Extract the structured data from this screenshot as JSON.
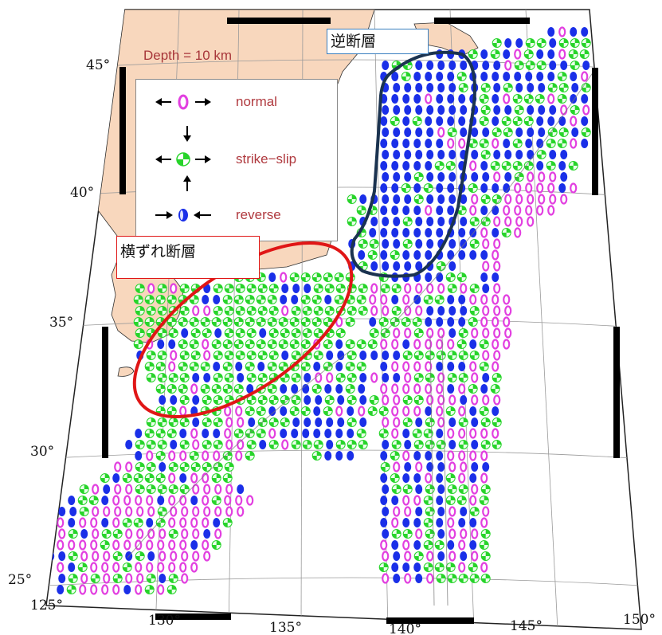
{
  "map": {
    "depth_label": "Depth = 10 km",
    "lat_labels": [
      "45°",
      "40°",
      "35°",
      "30°",
      "25°"
    ],
    "lon_labels": [
      "125°",
      "130°",
      "135°",
      "140°",
      "145°",
      "150°"
    ],
    "legend": {
      "normal": "normal",
      "strike_slip": "strike−slip",
      "reverse": "reverse"
    },
    "annotations": {
      "reverse_fault": "逆断層",
      "strike_slip_fault": "横ずれ断層"
    },
    "colors": {
      "normal": "#e23fe0",
      "strike_slip": "#27d42a",
      "reverse": "#1a2fe8",
      "land": "#f8d7bd",
      "reverse_outline": "#1b3350",
      "strike_slip_outline": "#e01616",
      "reverse_label_border": "#3a7fbf",
      "strike_slip_label_border": "#e01616"
    }
  }
}
